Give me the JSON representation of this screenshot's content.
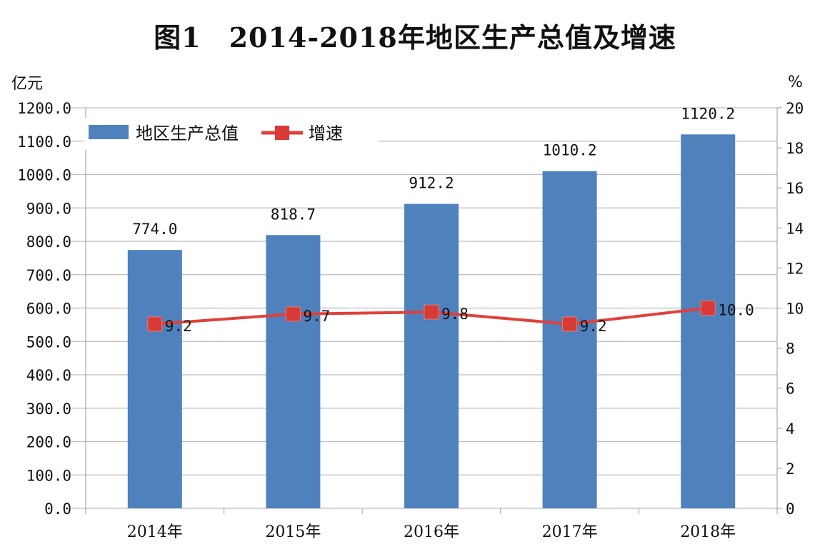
{
  "chart_data": {
    "type": "bar+line",
    "title": "图1　2014-2018年地区生产总值及增速",
    "categories": [
      "2014年",
      "2015年",
      "2016年",
      "2017年",
      "2018年"
    ],
    "ylabel_left": "亿元",
    "ylabel_right": "%",
    "ylim_left": [
      0,
      1200
    ],
    "ylim_right": [
      0,
      20
    ],
    "yticks_left": [
      "0.0",
      "100.0",
      "200.0",
      "300.0",
      "400.0",
      "500.0",
      "600.0",
      "700.0",
      "800.0",
      "900.0",
      "1000.0",
      "1100.0",
      "1200.0"
    ],
    "yticks_right": [
      "0",
      "2",
      "4",
      "6",
      "8",
      "10",
      "12",
      "14",
      "16",
      "18",
      "20"
    ],
    "grid": true,
    "legend_placement": "top-left",
    "series": [
      {
        "name": "地区生产总值",
        "type": "bar",
        "axis": "left",
        "color": "#4f81bd",
        "values": [
          774.0,
          818.7,
          912.2,
          1010.2,
          1120.2
        ],
        "labels": [
          "774.0",
          "818.7",
          "912.2",
          "1010.2",
          "1120.2"
        ]
      },
      {
        "name": "增速",
        "type": "line",
        "axis": "right",
        "color": "#e0403a",
        "values": [
          9.2,
          9.7,
          9.8,
          9.2,
          10.0
        ],
        "labels": [
          "9.2",
          "9.7",
          "9.8",
          "9.2",
          "10.0"
        ]
      }
    ]
  }
}
